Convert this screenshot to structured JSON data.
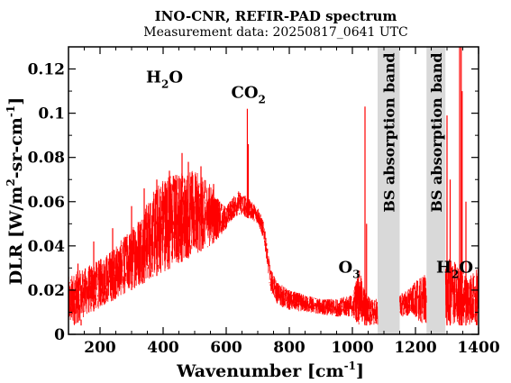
{
  "chart_data": {
    "type": "line",
    "title": "INO-CNR, REFIR-PAD spectrum",
    "subtitle": "Measurement data: 20250817_0641 UTC",
    "xlabel": {
      "main": "Wavenumber [cm",
      "sup": "-1",
      "end": "]"
    },
    "ylabel": {
      "a": "DLR [W/m",
      "sup1": "2",
      "b": "-sr-cm",
      "sup2": "-1",
      "c": "]"
    },
    "xlim": [
      100,
      1400
    ],
    "ylim": [
      0,
      0.13
    ],
    "x_ticks": [
      200,
      400,
      600,
      800,
      1000,
      1200,
      1400
    ],
    "y_ticks": [
      0,
      0.02,
      0.04,
      0.06,
      0.08,
      0.1,
      0.12
    ],
    "y_tick_labels": [
      "0",
      "0.02",
      "0.04",
      "0.06",
      "0.08",
      "0.1",
      "0.12"
    ],
    "grid": false,
    "series": [
      {
        "color": "#ff0000",
        "envelope": {
          "x": [
            100,
            120,
            150,
            200,
            250,
            300,
            350,
            400,
            450,
            500,
            550,
            580,
            600,
            620,
            640,
            660,
            680,
            700,
            720,
            740,
            760,
            780,
            800,
            850,
            900,
            950,
            1000,
            1020,
            1040,
            1060,
            1080,
            1090,
            1100,
            1150,
            1190,
            1200,
            1220,
            1240,
            1260,
            1280,
            1300,
            1320,
            1340,
            1360,
            1380,
            1400
          ],
          "upper": [
            0.026,
            0.028,
            0.03,
            0.034,
            0.04,
            0.048,
            0.06,
            0.072,
            0.074,
            0.074,
            0.068,
            0.06,
            0.058,
            0.062,
            0.065,
            0.063,
            0.06,
            0.058,
            0.05,
            0.03,
            0.024,
            0.022,
            0.02,
            0.018,
            0.016,
            0.016,
            0.018,
            0.03,
            0.02,
            0.016,
            0.016,
            0.016,
            0.018,
            0.018,
            0.022,
            0.024,
            0.026,
            0.03,
            0.03,
            0.032,
            0.034,
            0.034,
            0.03,
            0.028,
            0.028,
            0.03
          ],
          "lower": [
            0.004,
            0.004,
            0.008,
            0.012,
            0.016,
            0.02,
            0.024,
            0.028,
            0.032,
            0.036,
            0.04,
            0.044,
            0.048,
            0.052,
            0.054,
            0.053,
            0.052,
            0.05,
            0.042,
            0.02,
            0.014,
            0.012,
            0.011,
            0.01,
            0.009,
            0.008,
            0.008,
            0.004,
            0.004,
            0.004,
            0.004,
            0.004,
            0.008,
            0.008,
            0.008,
            0.008,
            0.004,
            0.004,
            0.004,
            0.004,
            0.004,
            0.004,
            0.004,
            0.004,
            0.004,
            0.004
          ]
        },
        "spikes": [
          {
            "x": 130,
            "y": 0.032
          },
          {
            "x": 140,
            "y": 0.004
          },
          {
            "x": 180,
            "y": 0.042
          },
          {
            "x": 240,
            "y": 0.048
          },
          {
            "x": 300,
            "y": 0.058
          },
          {
            "x": 340,
            "y": 0.066
          },
          {
            "x": 380,
            "y": 0.07
          },
          {
            "x": 420,
            "y": 0.074
          },
          {
            "x": 460,
            "y": 0.082
          },
          {
            "x": 480,
            "y": 0.078
          },
          {
            "x": 520,
            "y": 0.076
          },
          {
            "x": 560,
            "y": 0.068
          },
          {
            "x": 667,
            "y": 0.102
          },
          {
            "x": 670,
            "y": 0.086
          },
          {
            "x": 1040,
            "y": 0.103
          },
          {
            "x": 1045,
            "y": 0.05
          },
          {
            "x": 1300,
            "y": 0.099
          },
          {
            "x": 1310,
            "y": 0.07
          },
          {
            "x": 1340,
            "y": 0.13
          },
          {
            "x": 1345,
            "y": 0.13
          },
          {
            "x": 1348,
            "y": 0.11
          },
          {
            "x": 1360,
            "y": 0.06
          }
        ]
      }
    ],
    "bands": [
      {
        "x_from": 1080,
        "x_to": 1150,
        "label": "BS absorption band",
        "color": "#d9d9d9"
      },
      {
        "x_from": 1235,
        "x_to": 1295,
        "label": "BS absorption band",
        "color": "#d9d9d9"
      }
    ],
    "annotations": [
      {
        "base": "H",
        "sub": "2",
        "rest": "O",
        "x": 420,
        "y": 0.114
      },
      {
        "base": "CO",
        "sub": "2",
        "rest": "",
        "x": 690,
        "y": 0.107
      },
      {
        "base": "O",
        "sub": "3",
        "rest": "",
        "x": 1030,
        "y": 0.028
      },
      {
        "base": "H",
        "sub": "2",
        "rest": "O",
        "x": 1340,
        "y": 0.028
      }
    ]
  }
}
